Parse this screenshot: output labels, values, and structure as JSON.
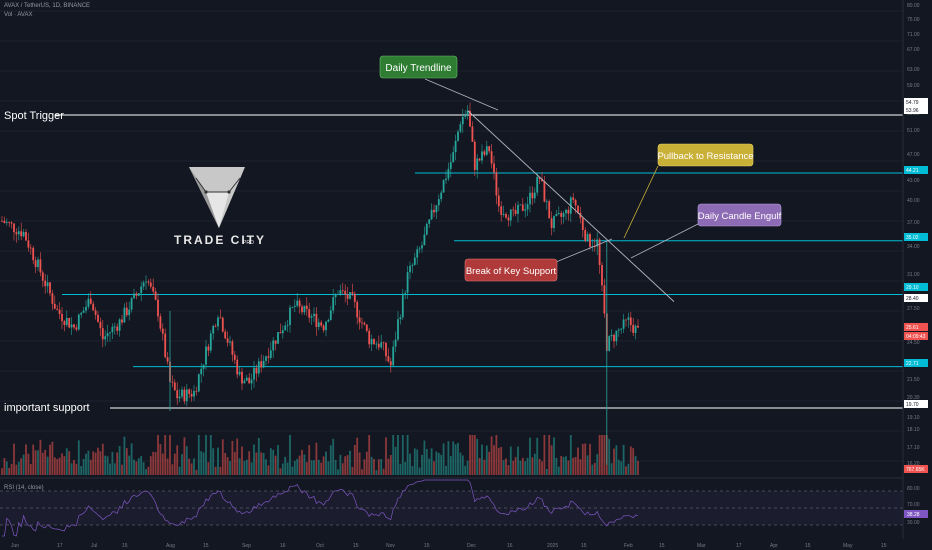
{
  "header": {
    "symbol_line": "AVAX / TetherUS, 1D, BINANCE",
    "vol_line": "Vol · AVAX"
  },
  "rsi_label": "RSI (14, close)",
  "colors": {
    "background": "#131722",
    "up": "#26a69a",
    "down": "#ef5350",
    "cyan_line": "#00bcd4",
    "white_line": "#ffffff",
    "trendline": "#b2b5be",
    "rsi_line": "#7e57c2",
    "green_label": "#2e7d32",
    "yellow_label": "#c9b037",
    "purple_label": "#8e6bb5",
    "red_label": "#b03a3a"
  },
  "watermark": {
    "brand": "TRADE CITY",
    "suffix": "PRO"
  },
  "annotations": [
    {
      "id": "spot",
      "text": "Spot Trigger"
    },
    {
      "id": "support",
      "text": "important support"
    },
    {
      "id": "trend",
      "text": "Daily Trendline"
    },
    {
      "id": "pullback",
      "text": "Pullback to Resistance"
    },
    {
      "id": "engulf",
      "text": "Daily Candle Engulf"
    },
    {
      "id": "break",
      "text": "Break of Key Support"
    }
  ],
  "chart_data": {
    "type": "candlestick",
    "x_ticks": [
      "Jun",
      "17",
      "Jul",
      "15",
      "Aug",
      "15",
      "Sep",
      "16",
      "Oct",
      "15",
      "Nov",
      "15",
      "Dec",
      "16",
      "2025",
      "15",
      "Feb",
      "15",
      "Mar",
      "17",
      "Apr",
      "15",
      "May",
      "15"
    ],
    "price_axis": {
      "scale": "log",
      "ticks": [
        "80.00",
        "75.00",
        "71.00",
        "67.00",
        "63.00",
        "59.00",
        "55.00",
        "51.00",
        "47.00",
        "43.00",
        "40.00",
        "37.00",
        "34.00",
        "31.00",
        "27.50",
        "24.50",
        "21.50",
        "20.30",
        "19.10",
        "18.10",
        "17.10",
        "16.20"
      ],
      "level_tags": [
        {
          "value": "54.79",
          "style": "white"
        },
        {
          "value": "53.96",
          "style": "white"
        },
        {
          "value": "44.21",
          "style": "cyan"
        },
        {
          "value": "35.02",
          "style": "cyan"
        },
        {
          "value": "29.10",
          "style": "cyan"
        },
        {
          "value": "28.40",
          "style": "white"
        },
        {
          "value": "25.61",
          "style": "red"
        },
        {
          "value": "04:09:43",
          "style": "red"
        },
        {
          "value": "22.71",
          "style": "cyan"
        },
        {
          "value": "19.70",
          "style": "white"
        },
        {
          "value": "767.65K",
          "style": "red"
        }
      ]
    },
    "horizontal_levels": [
      {
        "price": 53.96,
        "color": "white",
        "label": "Spot Trigger"
      },
      {
        "price": 44.21,
        "color": "cyan"
      },
      {
        "price": 35.02,
        "color": "cyan"
      },
      {
        "price": 29.1,
        "color": "cyan"
      },
      {
        "price": 22.71,
        "color": "cyan"
      },
      {
        "price": 19.7,
        "color": "white",
        "label": "important support"
      }
    ],
    "trendline": {
      "from": {
        "date": "2024-12-07",
        "price": 54.8
      },
      "to": {
        "date": "2025-03-03",
        "price": 28.4
      }
    },
    "rsi": {
      "period": 14,
      "current": "38.28",
      "axis_ticks": [
        "80.00",
        "70.00",
        "30.00"
      ]
    },
    "price_path": [
      {
        "date": "2024-05-27",
        "price": 37.5
      },
      {
        "date": "2024-06-05",
        "price": 36.0
      },
      {
        "date": "2024-06-12",
        "price": 31.5
      },
      {
        "date": "2024-06-19",
        "price": 27.5
      },
      {
        "date": "2024-06-26",
        "price": 26.0
      },
      {
        "date": "2024-07-03",
        "price": 28.8
      },
      {
        "date": "2024-07-08",
        "price": 25.0
      },
      {
        "date": "2024-07-15",
        "price": 26.5
      },
      {
        "date": "2024-07-22",
        "price": 29.0
      },
      {
        "date": "2024-07-26",
        "price": 31.0
      },
      {
        "date": "2024-07-31",
        "price": 27.5
      },
      {
        "date": "2024-08-05",
        "price": 21.5
      },
      {
        "date": "2024-08-08",
        "price": 20.5
      },
      {
        "date": "2024-08-15",
        "price": 20.8
      },
      {
        "date": "2024-08-25",
        "price": 27.5
      },
      {
        "date": "2024-09-03",
        "price": 22.0
      },
      {
        "date": "2024-09-07",
        "price": 21.5
      },
      {
        "date": "2024-09-15",
        "price": 24.0
      },
      {
        "date": "2024-09-26",
        "price": 28.0
      },
      {
        "date": "2024-10-08",
        "price": 26.2
      },
      {
        "date": "2024-10-14",
        "price": 29.5
      },
      {
        "date": "2024-10-20",
        "price": 28.5
      },
      {
        "date": "2024-10-27",
        "price": 25.0
      },
      {
        "date": "2024-11-01",
        "price": 24.5
      },
      {
        "date": "2024-11-05",
        "price": 22.8
      },
      {
        "date": "2024-11-08",
        "price": 26.5
      },
      {
        "date": "2024-11-12",
        "price": 31.0
      },
      {
        "date": "2024-11-18",
        "price": 34.5
      },
      {
        "date": "2024-11-24",
        "price": 40.0
      },
      {
        "date": "2024-12-01",
        "price": 47.0
      },
      {
        "date": "2024-12-04",
        "price": 53.0
      },
      {
        "date": "2024-12-07",
        "price": 54.8
      },
      {
        "date": "2024-12-10",
        "price": 45.5
      },
      {
        "date": "2024-12-16",
        "price": 48.0
      },
      {
        "date": "2024-12-20",
        "price": 39.5
      },
      {
        "date": "2024-12-26",
        "price": 38.0
      },
      {
        "date": "2025-01-01",
        "price": 40.0
      },
      {
        "date": "2025-01-06",
        "price": 43.5
      },
      {
        "date": "2025-01-11",
        "price": 37.0
      },
      {
        "date": "2025-01-17",
        "price": 38.5
      },
      {
        "date": "2025-01-20",
        "price": 40.5
      },
      {
        "date": "2025-01-26",
        "price": 35.0
      },
      {
        "date": "2025-01-30",
        "price": 34.8
      },
      {
        "date": "2025-02-02",
        "price": 27.0
      },
      {
        "date": "2025-02-03",
        "price": 24.5
      },
      {
        "date": "2025-02-07",
        "price": 25.5
      },
      {
        "date": "2025-02-12",
        "price": 26.5
      },
      {
        "date": "2025-02-16",
        "price": 25.6
      }
    ]
  }
}
